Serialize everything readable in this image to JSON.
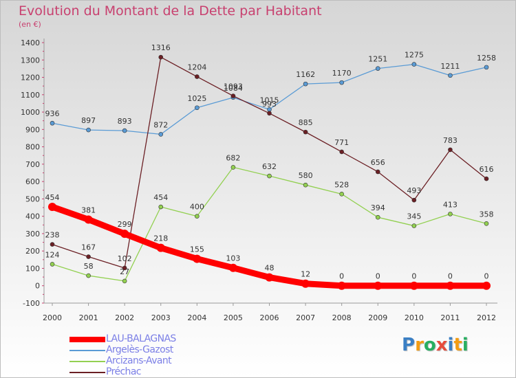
{
  "header": {
    "title": "Evolution du Montant de la Dette par Habitant",
    "unit": "(en €)"
  },
  "chart_data": {
    "type": "line",
    "title": "Evolution du Montant de la Dette par Habitant",
    "subtitle": "(en €)",
    "xlabel": "",
    "ylabel": "",
    "x": [
      "2000",
      "2001",
      "2002",
      "2003",
      "2004",
      "2005",
      "2006",
      "2007",
      "2008",
      "2009",
      "2010",
      "2011",
      "2012"
    ],
    "ylim": [
      -100,
      1400
    ],
    "yticks": [
      "-100",
      "0",
      "100",
      "200",
      "300",
      "400",
      "500",
      "600",
      "700",
      "800",
      "900",
      "1000",
      "1100",
      "1200",
      "1300",
      "1400"
    ],
    "grid": false,
    "legend_position": "bottom-left",
    "series": [
      {
        "name": "LAU-BALAGNAS",
        "color": "#ff0000",
        "values": [
          454,
          381,
          299,
          218,
          155,
          103,
          48,
          12,
          0,
          0,
          0,
          0,
          0
        ],
        "labels": [
          "454",
          "381",
          "299",
          "218",
          "155",
          "103",
          "48",
          "12",
          "0",
          "0",
          "0",
          "0",
          "0"
        ]
      },
      {
        "name": "Argelès-Gazost",
        "color": "#5a9bd5",
        "values": [
          936,
          897,
          893,
          872,
          1025,
          1084,
          1015,
          1162,
          1170,
          1251,
          1275,
          1211,
          1258
        ],
        "labels": [
          "936",
          "897",
          "893",
          "872",
          "1025",
          "1084",
          "1015",
          "1162",
          "1170",
          "1251",
          "1275",
          "1211",
          "1258"
        ]
      },
      {
        "name": "Arcizans-Avant",
        "color": "#92d050",
        "values": [
          124,
          58,
          27,
          454,
          400,
          682,
          632,
          580,
          528,
          394,
          345,
          413,
          358
        ],
        "labels": [
          "124",
          "58",
          "27",
          "454",
          "400",
          "682",
          "632",
          "580",
          "528",
          "394",
          "345",
          "413",
          "358"
        ]
      },
      {
        "name": "Préchac",
        "color": "#6b1f24",
        "values": [
          238,
          167,
          102,
          1316,
          1204,
          1093,
          993,
          885,
          771,
          656,
          493,
          783,
          616
        ],
        "labels": [
          "238",
          "167",
          "102",
          "1316",
          "1204",
          "1093",
          "993",
          "885",
          "771",
          "656",
          "493",
          "783",
          "616"
        ]
      }
    ]
  },
  "logo": {
    "letters": [
      "P",
      "r",
      "o",
      "x",
      "i",
      "t",
      "i"
    ]
  }
}
